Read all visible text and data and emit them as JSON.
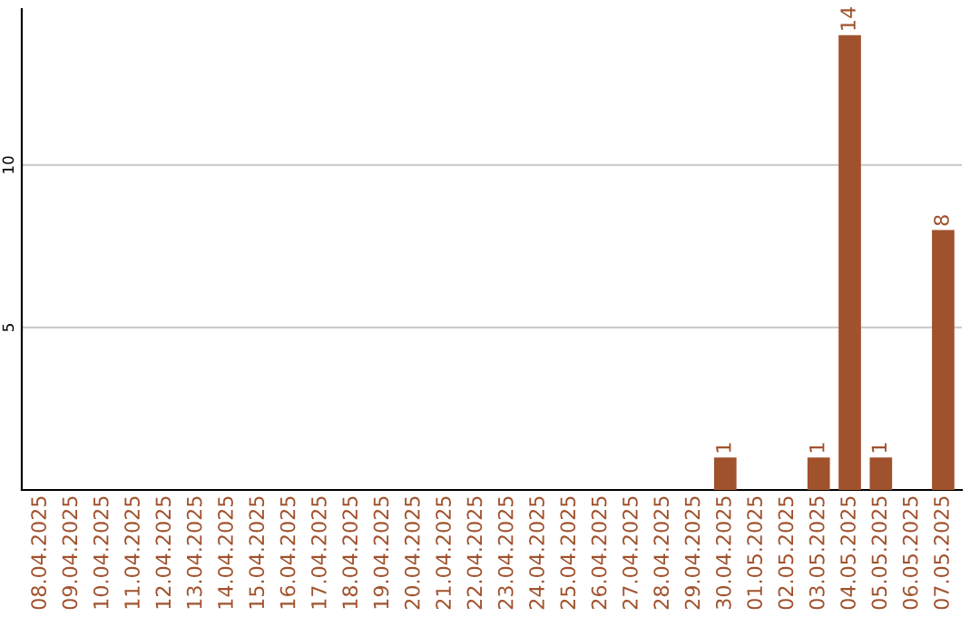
{
  "chart_data": {
    "type": "bar",
    "categories": [
      "08.04.2025",
      "09.04.2025",
      "10.04.2025",
      "11.04.2025",
      "12.04.2025",
      "13.04.2025",
      "14.04.2025",
      "15.04.2025",
      "16.04.2025",
      "17.04.2025",
      "18.04.2025",
      "19.04.2025",
      "20.04.2025",
      "21.04.2025",
      "22.04.2025",
      "23.04.2025",
      "24.04.2025",
      "25.04.2025",
      "26.04.2025",
      "27.04.2025",
      "28.04.2025",
      "29.04.2025",
      "30.04.2025",
      "01.05.2025",
      "02.05.2025",
      "03.05.2025",
      "04.05.2025",
      "05.05.2025",
      "06.05.2025",
      "07.05.2025"
    ],
    "values": [
      0,
      0,
      0,
      0,
      0,
      0,
      0,
      0,
      0,
      0,
      0,
      0,
      0,
      0,
      0,
      0,
      0,
      0,
      0,
      0,
      0,
      0,
      1,
      0,
      0,
      1,
      14,
      1,
      0,
      8
    ],
    "value_labels": [
      null,
      null,
      null,
      null,
      null,
      null,
      null,
      null,
      null,
      null,
      null,
      null,
      null,
      null,
      null,
      null,
      null,
      null,
      null,
      null,
      null,
      null,
      "1",
      null,
      null,
      "1",
      "14",
      "1",
      null,
      "8"
    ],
    "color": "#a0522d",
    "ylim": [
      0,
      14.8
    ],
    "yticks": [
      5,
      10
    ],
    "grid": "y"
  }
}
